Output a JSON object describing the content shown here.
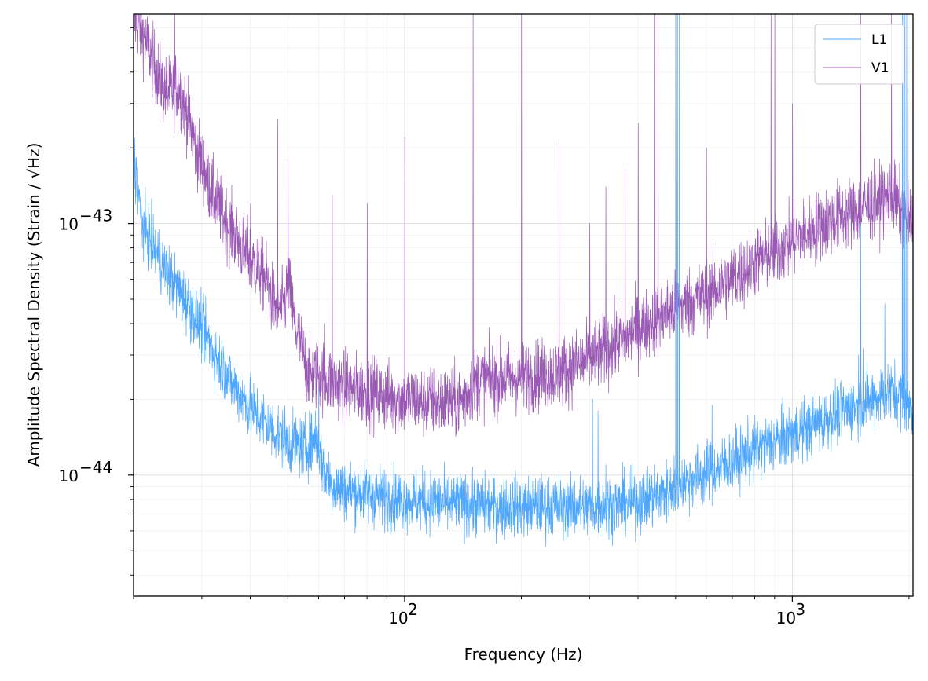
{
  "chart_data": {
    "type": "line",
    "xlabel": "Frequency (Hz)",
    "ylabel": "Amplitude Spectral Density (Strain / √Hz)",
    "xscale": "log",
    "yscale": "log",
    "xlim": [
      20,
      2048
    ],
    "ylim": [
      3.3e-45,
      6.8e-43
    ],
    "grid": true,
    "legend": "top-right",
    "x_ticks": [
      {
        "value": 100,
        "base": "10",
        "exp": "2"
      },
      {
        "value": 1000,
        "base": "10",
        "exp": "3"
      }
    ],
    "y_ticks": [
      {
        "value": 1e-44,
        "base": "10",
        "exp": "−44"
      },
      {
        "value": 1e-43,
        "base": "10",
        "exp": "−43"
      }
    ],
    "series": [
      {
        "name": "L1",
        "color": "#4da6ff",
        "baseline": {
          "x": [
            20,
            21,
            23,
            25,
            28,
            30,
            33,
            36,
            40,
            45,
            50,
            55,
            58,
            59,
            60,
            62,
            65,
            70,
            80,
            90,
            100,
            120,
            150,
            200,
            250,
            300,
            350,
            400,
            450,
            490,
            510,
            600,
            700,
            800,
            1000,
            1200,
            1400,
            1600,
            1800,
            1900,
            2048
          ],
          "y": [
            1.9e-43,
            1e-43,
            7.5e-44,
            6e-44,
            4.6e-44,
            3.8e-44,
            2.9e-44,
            2.3e-44,
            1.85e-44,
            1.55e-44,
            1.35e-44,
            1.28e-44,
            1.35e-44,
            1.45e-44,
            1.3e-44,
            1.05e-44,
            9.2e-45,
            8.8e-45,
            8.4e-45,
            8.1e-45,
            8e-45,
            7.8e-45,
            7.6e-45,
            7.5e-45,
            7.5e-45,
            7.5e-45,
            7.6e-45,
            7.9e-45,
            8.3e-45,
            8.8e-45,
            9.3e-45,
            1.02e-44,
            1.13e-44,
            1.26e-44,
            1.45e-44,
            1.65e-44,
            1.85e-44,
            2e-44,
            2.15e-44,
            2.05e-44,
            1.8e-44
          ]
        },
        "noise": 0.06,
        "lines": [
          {
            "f": 60,
            "amp": 2.2e-44
          },
          {
            "f": 120,
            "amp": 9.5e-45
          },
          {
            "f": 180,
            "amp": 9.5e-45
          },
          {
            "f": 305,
            "amp": 2e-44
          },
          {
            "f": 315,
            "amp": 1.8e-44
          },
          {
            "f": 330,
            "amp": 1.1e-44
          },
          {
            "f": 440,
            "amp": 1.1e-44
          },
          {
            "f": 495,
            "amp": 1.2e-44
          },
          {
            "f": 500,
            "amp": 6.8e-43
          },
          {
            "f": 505,
            "amp": 6.8e-43
          },
          {
            "f": 510,
            "amp": 6.8e-43
          },
          {
            "f": 600,
            "amp": 1.3e-44
          },
          {
            "f": 620,
            "amp": 1.9e-44
          },
          {
            "f": 990,
            "amp": 1.5e-44
          },
          {
            "f": 1005,
            "amp": 1.6e-44
          },
          {
            "f": 1020,
            "amp": 1.6e-44
          },
          {
            "f": 1470,
            "amp": 2e-44
          },
          {
            "f": 1480,
            "amp": 3e-44
          },
          {
            "f": 1500,
            "amp": 1e-43
          },
          {
            "f": 1520,
            "amp": 3.2e-44
          },
          {
            "f": 1730,
            "amp": 4.8e-44
          },
          {
            "f": 1920,
            "amp": 6.8e-43
          },
          {
            "f": 1935,
            "amp": 6.8e-43
          },
          {
            "f": 1950,
            "amp": 6.8e-43
          },
          {
            "f": 1970,
            "amp": 6.8e-43
          }
        ]
      },
      {
        "name": "V1",
        "color": "#9b59b6",
        "baseline": {
          "x": [
            20,
            21,
            22,
            23,
            24,
            25,
            26,
            27,
            29,
            32,
            35,
            38,
            40,
            44,
            45,
            47,
            49,
            50,
            52,
            55,
            57,
            60,
            65,
            70,
            80,
            90,
            100,
            120,
            140,
            150,
            160,
            200,
            250,
            300,
            350,
            400,
            450,
            500,
            600,
            700,
            800,
            1000,
            1200,
            1500,
            1700,
            1800,
            1900,
            2048
          ],
          "y": [
            6.5e-43,
            5.8e-43,
            4.8e-43,
            4e-43,
            3.4e-43,
            3.3e-43,
            3.6e-43,
            3e-43,
            2e-43,
            1.3e-43,
            1e-43,
            8e-44,
            7.2e-44,
            6e-44,
            5.2e-44,
            4.6e-44,
            4.6e-44,
            6e-44,
            4e-44,
            2.9e-44,
            2.5e-44,
            2.5e-44,
            2.35e-44,
            2.25e-44,
            2.15e-44,
            2.05e-44,
            2e-44,
            1.95e-44,
            1.95e-44,
            2.3e-44,
            2.4e-44,
            2.45e-44,
            2.55e-44,
            2.9e-44,
            3.3e-44,
            3.8e-44,
            4.2e-44,
            4.6e-44,
            5.2e-44,
            6e-44,
            7e-44,
            8.5e-44,
            1e-43,
            1.15e-43,
            1.25e-43,
            1.3e-43,
            1.15e-43,
            1e-43
          ]
        },
        "noise": 0.07,
        "lines": [
          {
            "f": 25.5,
            "amp": 6.8e-43
          },
          {
            "f": 47,
            "amp": 2.6e-43
          },
          {
            "f": 50,
            "amp": 1.8e-43
          },
          {
            "f": 40,
            "amp": 1.2e-43
          },
          {
            "f": 62,
            "amp": 4e-44
          },
          {
            "f": 65,
            "amp": 1.3e-43
          },
          {
            "f": 80,
            "amp": 1.2e-43
          },
          {
            "f": 100,
            "amp": 2.2e-43
          },
          {
            "f": 150,
            "amp": 6.8e-43
          },
          {
            "f": 200,
            "amp": 6.8e-43
          },
          {
            "f": 250,
            "amp": 2.1e-43
          },
          {
            "f": 300,
            "amp": 1e-43
          },
          {
            "f": 330,
            "amp": 1.4e-43
          },
          {
            "f": 370,
            "amp": 1.7e-43
          },
          {
            "f": 400,
            "amp": 2.5e-43
          },
          {
            "f": 440,
            "amp": 6.8e-43
          },
          {
            "f": 450,
            "amp": 6.8e-43
          },
          {
            "f": 500,
            "amp": 6.8e-43
          },
          {
            "f": 600,
            "amp": 2e-43
          },
          {
            "f": 880,
            "amp": 6.8e-43
          },
          {
            "f": 900,
            "amp": 6.8e-43
          },
          {
            "f": 1000,
            "amp": 3e-43
          },
          {
            "f": 1500,
            "amp": 6.8e-43
          },
          {
            "f": 1800,
            "amp": 6.8e-43
          }
        ]
      }
    ]
  }
}
